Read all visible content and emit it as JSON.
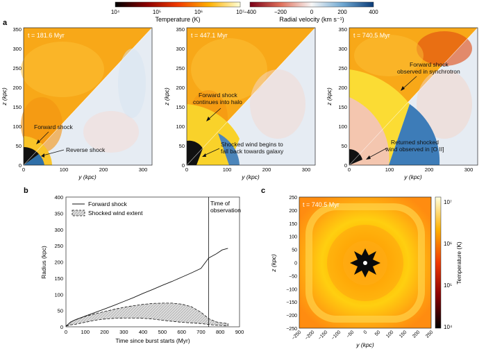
{
  "colorbars": {
    "temperature": {
      "ticks": [
        "10⁴",
        "10⁵",
        "10⁶",
        "10⁷"
      ],
      "label": "Temperature (K)"
    },
    "radial_velocity": {
      "ticks": [
        "−400",
        "−200",
        "0",
        "200",
        "400"
      ],
      "label": "Radial velocity (km s⁻¹)"
    }
  },
  "panel_a": {
    "letter": "a",
    "subpanels": [
      {
        "time": "t = 181.6 Myr",
        "annotations": [
          "Forward shock",
          "Reverse shock"
        ]
      },
      {
        "time": "t = 447.1 Myr",
        "annotations": [
          "Forward shock\ncontinues into halo",
          "Shocked wind begins to\nfall back towards galaxy"
        ]
      },
      {
        "time": "t = 740.5 Myr",
        "annotations": [
          "Forward shock\nobserved in synchrotron",
          "Returned shocked\nwind observed in [O II]"
        ]
      }
    ],
    "x_ticks": [
      "0",
      "100",
      "200",
      "300"
    ],
    "y_ticks": [
      "0",
      "50",
      "100",
      "150",
      "200",
      "250",
      "300",
      "350"
    ],
    "xlabel": "y (kpc)",
    "ylabel": "z (kpc)"
  },
  "panel_b": {
    "letter": "b",
    "legend": [
      "Forward shock",
      "Shocked wind extent"
    ],
    "vline_label": "Time of\nobservation",
    "xlabel": "Time since burst starts (Myr)",
    "ylabel": "Radius (kpc)",
    "x_ticks": [
      "0",
      "100",
      "200",
      "300",
      "400",
      "500",
      "600",
      "700",
      "800",
      "900"
    ],
    "y_ticks": [
      "0",
      "50",
      "100",
      "150",
      "200",
      "250",
      "300",
      "350",
      "400"
    ]
  },
  "panel_c": {
    "letter": "c",
    "time": "t = 740.5 Myr",
    "x_ticks": [
      "−250",
      "−200",
      "−150",
      "−100",
      "−50",
      "0",
      "50",
      "100",
      "150",
      "200",
      "250"
    ],
    "y_ticks": [
      "−250",
      "−200",
      "−150",
      "−100",
      "−50",
      "0",
      "50",
      "100",
      "150",
      "200",
      "250"
    ],
    "xlabel": "y (kpc)",
    "ylabel": "z (kpc)",
    "cbar_ticks": [
      "10⁷",
      "10⁶",
      "10⁵",
      "10⁴"
    ],
    "cbar_label": "Temperature (K)"
  },
  "chart_data": [
    {
      "type": "line",
      "title": "",
      "xlabel": "Time since burst starts (Myr)",
      "ylabel": "Radius (kpc)",
      "xlim": [
        0,
        900
      ],
      "ylim": [
        0,
        400
      ],
      "vline_x": 740,
      "series": [
        {
          "name": "Forward shock",
          "x": [
            0,
            25,
            50,
            100,
            150,
            200,
            250,
            300,
            350,
            400,
            450,
            500,
            550,
            600,
            650,
            700,
            740,
            780,
            810,
            840
          ],
          "values": [
            2,
            15,
            22,
            33,
            44,
            55,
            66,
            78,
            90,
            103,
            115,
            128,
            140,
            153,
            166,
            180,
            212,
            225,
            237,
            242
          ]
        },
        {
          "name": "Shocked wind extent",
          "x": [
            0,
            25,
            50,
            100,
            150,
            200,
            250,
            300,
            350,
            400,
            450,
            500,
            550,
            600,
            650,
            700,
            740,
            780,
            810,
            840
          ],
          "upper": [
            2,
            15,
            22,
            32,
            40,
            47,
            54,
            60,
            65,
            69,
            72,
            73,
            73,
            70,
            62,
            45,
            25,
            15,
            12,
            10
          ],
          "lower": [
            2,
            6,
            8,
            14,
            20,
            24,
            26,
            27,
            27,
            26,
            24,
            20,
            17,
            14,
            12,
            10,
            7,
            5,
            4,
            3
          ]
        }
      ]
    }
  ]
}
